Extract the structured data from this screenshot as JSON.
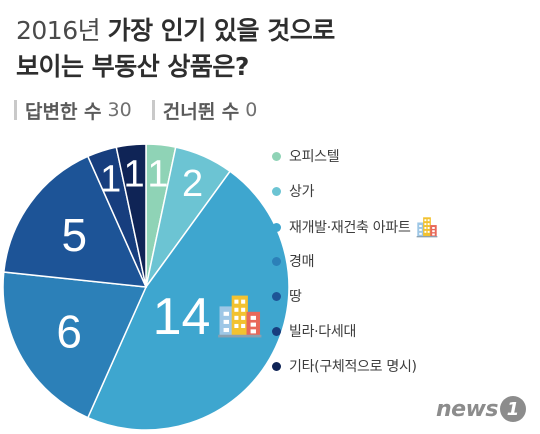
{
  "header": {
    "line1_light": "2016년",
    "line1_bold": "가장 인기 있을 것으로",
    "line2_bold": "보이는 부동산 상품은?"
  },
  "stats": {
    "answered_label": "답변한 수",
    "answered_value": "30",
    "skipped_label": "건너뛴 수",
    "skipped_value": "0"
  },
  "chart_data": {
    "type": "pie",
    "title": "2016년 가장 인기 있을 것으로 보이는 부동산 상품은?",
    "start": "12 o'clock",
    "direction": "clockwise",
    "legend_position": "right",
    "slices": [
      {
        "label": "오피스텔",
        "value": 1,
        "color": "#8fd3b6",
        "icon": ""
      },
      {
        "label": "상가",
        "value": 2,
        "color": "#6cc4d3",
        "icon": ""
      },
      {
        "label": "재개발·재건축 아파트",
        "value": 14,
        "color": "#3ea6cf",
        "icon": "building-icon"
      },
      {
        "label": "경매",
        "value": 6,
        "color": "#2c80b8",
        "icon": ""
      },
      {
        "label": "땅",
        "value": 5,
        "color": "#1d5497",
        "icon": ""
      },
      {
        "label": "빌라·다세대",
        "value": 1,
        "color": "#173e7e",
        "icon": ""
      },
      {
        "label": "기타(구체적으로 명시)",
        "value": 1,
        "color": "#0f2456",
        "icon": ""
      }
    ]
  },
  "logo": {
    "word": "news",
    "badge": "1"
  }
}
